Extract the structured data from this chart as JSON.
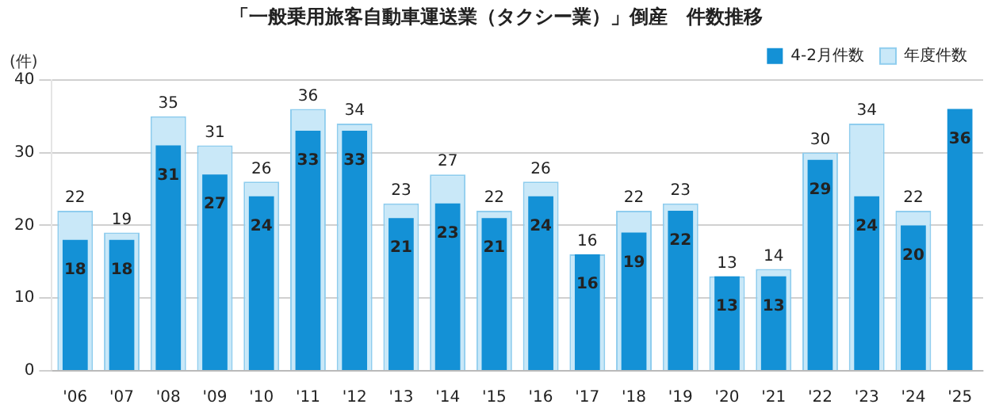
{
  "chart_data": {
    "type": "bar",
    "title": "「一般乗用旅客自動車運送業（タクシー業）」倒産　件数推移",
    "ylabel": "(件)",
    "categories": [
      "'06",
      "'07",
      "'08",
      "'09",
      "'10",
      "'11",
      "'12",
      "'13",
      "'14",
      "'15",
      "'16",
      "'17",
      "'18",
      "'19",
      "'20",
      "'21",
      "'22",
      "'23",
      "'24",
      "'25"
    ],
    "series": [
      {
        "name": "年度件数",
        "color": "#c9e8f8",
        "values": [
          22,
          19,
          35,
          31,
          26,
          36,
          34,
          23,
          27,
          22,
          26,
          16,
          22,
          23,
          13,
          14,
          30,
          34,
          22,
          null
        ]
      },
      {
        "name": "4-2月件数",
        "color": "#1491d6",
        "values": [
          18,
          18,
          31,
          27,
          24,
          33,
          33,
          21,
          23,
          21,
          24,
          16,
          19,
          22,
          13,
          13,
          29,
          24,
          20,
          36
        ]
      }
    ],
    "ylim": [
      0,
      40
    ],
    "yticks": [
      0,
      10,
      20,
      30,
      40
    ],
    "grid": "y",
    "legend": "top right",
    "data_labels": true
  }
}
